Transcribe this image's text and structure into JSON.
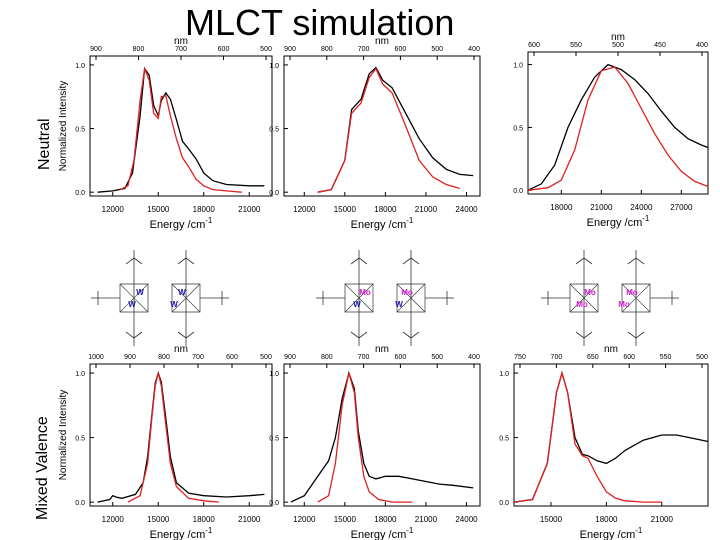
{
  "title": "MLCT simulation",
  "row_labels": [
    "Neutral",
    "Mixed Valence"
  ],
  "colors": {
    "experimental": "#000000",
    "simulated": "#e02020",
    "w_label": "#1a1aa8",
    "mo_label": "#cc22cc"
  },
  "molecules": [
    {
      "metal_labels": [
        "W",
        "W",
        "W",
        "W"
      ]
    },
    {
      "metal_labels": [
        "Mo",
        "W",
        "Mo",
        "W"
      ]
    },
    {
      "metal_labels": [
        "Mo",
        "Mo",
        "Mo",
        "Mo"
      ]
    }
  ],
  "chart_data": [
    {
      "type": "line",
      "panel": "neutral-1",
      "xlabel": "Energy /cm-1",
      "ylabel": "Normalized Intensity",
      "toplabel": "nm",
      "xlim": [
        10500,
        22500
      ],
      "ylim": [
        -0.03,
        1.07
      ],
      "xticks": [
        "12000",
        "15000",
        "18000",
        "21000"
      ],
      "yticks": [
        "0.0",
        "0.5",
        "1.0"
      ],
      "nmticks": [
        "900",
        "800",
        "700",
        "600",
        "500"
      ],
      "series": [
        {
          "name": "experimental",
          "x": [
            11000,
            12000,
            12800,
            13300,
            13800,
            14100,
            14400,
            14700,
            15000,
            15200,
            15500,
            15800,
            16200,
            16600,
            17000,
            17500,
            18000,
            18600,
            19500,
            21000,
            22000
          ],
          "y": [
            0.0,
            0.01,
            0.03,
            0.15,
            0.6,
            0.97,
            0.92,
            0.68,
            0.6,
            0.72,
            0.78,
            0.73,
            0.57,
            0.4,
            0.34,
            0.26,
            0.15,
            0.09,
            0.06,
            0.05,
            0.05
          ]
        },
        {
          "name": "simulated",
          "x": [
            12500,
            13000,
            13400,
            13800,
            14100,
            14400,
            14700,
            15000,
            15200,
            15500,
            15800,
            16200,
            16600,
            17000,
            17500,
            18000,
            18600,
            19500,
            20500
          ],
          "y": [
            0.02,
            0.05,
            0.25,
            0.72,
            0.97,
            0.88,
            0.62,
            0.58,
            0.75,
            0.76,
            0.6,
            0.42,
            0.27,
            0.2,
            0.1,
            0.05,
            0.02,
            0.01,
            0.0
          ]
        }
      ]
    },
    {
      "type": "line",
      "panel": "neutral-2",
      "xlabel": "Energy /cm-1",
      "toplabel": "nm",
      "xlim": [
        10500,
        25000
      ],
      "ylim": [
        -0.03,
        1.07
      ],
      "xticks": [
        "12000",
        "15000",
        "18000",
        "21000",
        "24000"
      ],
      "yticks": [
        "0.0",
        "0.5",
        "1.0"
      ],
      "nmticks": [
        "900",
        "800",
        "700",
        "600",
        "500",
        "400"
      ],
      "series": [
        {
          "name": "experimental",
          "x": [
            13000,
            14000,
            15000,
            15500,
            16200,
            16800,
            17300,
            17800,
            18500,
            19500,
            20500,
            21500,
            22500,
            23500,
            24500
          ],
          "y": [
            0.0,
            0.02,
            0.25,
            0.65,
            0.73,
            0.93,
            0.98,
            0.88,
            0.82,
            0.62,
            0.42,
            0.27,
            0.18,
            0.14,
            0.13
          ]
        },
        {
          "name": "simulated",
          "x": [
            13000,
            14000,
            15000,
            15500,
            16200,
            16800,
            17300,
            17800,
            18500,
            19500,
            20500,
            21500,
            22500,
            23500
          ],
          "y": [
            0.0,
            0.02,
            0.25,
            0.62,
            0.7,
            0.9,
            0.97,
            0.85,
            0.78,
            0.52,
            0.25,
            0.12,
            0.06,
            0.03
          ]
        }
      ]
    },
    {
      "type": "line",
      "panel": "neutral-3",
      "xlabel": "Energy /cm-1",
      "toplabel": "nm",
      "xlim": [
        15500,
        29000
      ],
      "ylim": [
        -0.03,
        1.1
      ],
      "xticks": [
        "18000",
        "21000",
        "24000",
        "27000"
      ],
      "yticks": [
        "0.0",
        "0.5",
        "1.0"
      ],
      "nmticks": [
        "600",
        "550",
        "500",
        "450",
        "400"
      ],
      "series": [
        {
          "name": "experimental",
          "x": [
            15500,
            16500,
            17500,
            18500,
            19500,
            20500,
            21500,
            22500,
            23500,
            24500,
            25500,
            26500,
            27500,
            28500,
            29000
          ],
          "y": [
            0.0,
            0.05,
            0.2,
            0.5,
            0.72,
            0.9,
            1.0,
            0.96,
            0.88,
            0.77,
            0.63,
            0.5,
            0.41,
            0.36,
            0.34
          ]
        },
        {
          "name": "simulated",
          "x": [
            15500,
            17000,
            18000,
            19000,
            20000,
            21000,
            22000,
            23000,
            24000,
            25000,
            26000,
            27000,
            28000,
            29000
          ],
          "y": [
            0.0,
            0.02,
            0.08,
            0.32,
            0.72,
            0.95,
            0.98,
            0.85,
            0.65,
            0.45,
            0.28,
            0.15,
            0.07,
            0.03
          ]
        }
      ]
    },
    {
      "type": "line",
      "panel": "mixed-1",
      "xlabel": "Energy /cm-1",
      "ylabel": "Normalized Intensity",
      "toplabel": "nm",
      "xlim": [
        10500,
        22500
      ],
      "ylim": [
        -0.03,
        1.07
      ],
      "xticks": [
        "12000",
        "15000",
        "18000",
        "21000"
      ],
      "yticks": [
        "0.0",
        "0.5",
        "1.0"
      ],
      "nmticks": [
        "1000",
        "900",
        "800",
        "700",
        "600",
        "500"
      ],
      "series": [
        {
          "name": "experimental",
          "x": [
            11000,
            11800,
            12000,
            12200,
            12600,
            13500,
            14000,
            14300,
            14600,
            14800,
            15000,
            15200,
            15500,
            15800,
            16200,
            17000,
            18000,
            19500,
            21000,
            22000
          ],
          "y": [
            0.0,
            0.02,
            0.05,
            0.04,
            0.03,
            0.06,
            0.15,
            0.35,
            0.7,
            0.92,
            1.0,
            0.93,
            0.65,
            0.35,
            0.15,
            0.07,
            0.05,
            0.04,
            0.05,
            0.06
          ]
        },
        {
          "name": "simulated",
          "x": [
            13000,
            13800,
            14300,
            14600,
            14800,
            15000,
            15200,
            15500,
            15800,
            16200,
            17000,
            18000,
            19000
          ],
          "y": [
            0.0,
            0.05,
            0.3,
            0.68,
            0.9,
            1.0,
            0.9,
            0.6,
            0.3,
            0.12,
            0.03,
            0.01,
            0.0
          ]
        }
      ]
    },
    {
      "type": "line",
      "panel": "mixed-2",
      "xlabel": "Energy /cm-1",
      "toplabel": "nm",
      "xlim": [
        10500,
        25000
      ],
      "ylim": [
        -0.03,
        1.07
      ],
      "xticks": [
        "12000",
        "15000",
        "18000",
        "21000",
        "24000"
      ],
      "yticks": [
        "0.0",
        "0.5",
        "1.0"
      ],
      "nmticks": [
        "900",
        "800",
        "700",
        "600",
        "500",
        "400"
      ],
      "series": [
        {
          "name": "experimental",
          "x": [
            11000,
            12000,
            13000,
            13800,
            14300,
            14800,
            15300,
            15700,
            16000,
            16400,
            16800,
            17300,
            18000,
            19000,
            20000,
            21000,
            22000,
            23000,
            24500
          ],
          "y": [
            0.0,
            0.05,
            0.2,
            0.32,
            0.5,
            0.8,
            1.0,
            0.88,
            0.55,
            0.3,
            0.2,
            0.18,
            0.2,
            0.2,
            0.18,
            0.16,
            0.14,
            0.13,
            0.11
          ]
        },
        {
          "name": "simulated",
          "x": [
            13000,
            13800,
            14300,
            14800,
            15300,
            15700,
            16000,
            16400,
            16800,
            17500,
            18500,
            20000
          ],
          "y": [
            0.0,
            0.05,
            0.3,
            0.75,
            1.0,
            0.85,
            0.5,
            0.2,
            0.08,
            0.02,
            0.0,
            0.0
          ]
        }
      ]
    },
    {
      "type": "line",
      "panel": "mixed-3",
      "xlabel": "Energy /cm-1",
      "toplabel": "nm",
      "xlim": [
        13000,
        23500
      ],
      "ylim": [
        -0.03,
        1.07
      ],
      "xticks": [
        "15000",
        "18000",
        "21000"
      ],
      "yticks": [
        "0.0",
        "0.5",
        "1.0"
      ],
      "nmticks": [
        "750",
        "700",
        "650",
        "600",
        "550",
        "500"
      ],
      "series": [
        {
          "name": "experimental",
          "x": [
            13000,
            14000,
            14800,
            15300,
            15600,
            15900,
            16300,
            16700,
            17000,
            17500,
            18000,
            18500,
            19000,
            20000,
            21000,
            21800,
            22500,
            23500
          ],
          "y": [
            0.0,
            0.02,
            0.3,
            0.85,
            1.0,
            0.85,
            0.5,
            0.37,
            0.36,
            0.32,
            0.3,
            0.34,
            0.4,
            0.48,
            0.52,
            0.52,
            0.5,
            0.47
          ]
        },
        {
          "name": "simulated",
          "x": [
            13000,
            14000,
            14800,
            15300,
            15600,
            15900,
            16300,
            16700,
            17000,
            17500,
            18000,
            18500,
            19000,
            20000,
            21000
          ],
          "y": [
            0.0,
            0.02,
            0.3,
            0.85,
            1.0,
            0.85,
            0.45,
            0.36,
            0.34,
            0.2,
            0.08,
            0.03,
            0.01,
            0.0,
            0.0
          ]
        }
      ]
    }
  ]
}
